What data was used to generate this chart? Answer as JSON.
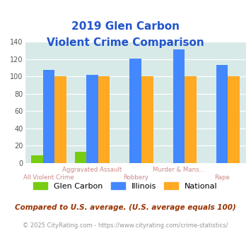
{
  "title_line1": "2019 Glen Carbon",
  "title_line2": "Violent Crime Comparison",
  "categories": [
    "All Violent Crime",
    "Aggravated Assault",
    "Robbery",
    "Murder & Mans...",
    "Rape"
  ],
  "label_top": [
    "",
    "Aggravated Assault",
    "",
    "Murder & Mans...",
    ""
  ],
  "label_bottom": [
    "All Violent Crime",
    "",
    "Robbery",
    "",
    "Rape"
  ],
  "glen_carbon": [
    9,
    13,
    0,
    0,
    0
  ],
  "illinois": [
    108,
    102,
    121,
    131,
    113
  ],
  "national": [
    100,
    100,
    100,
    100,
    100
  ],
  "glen_carbon_color": "#77cc11",
  "illinois_color": "#4488ff",
  "national_color": "#ffaa22",
  "bg_color": "#d8eae8",
  "ylim": [
    0,
    140
  ],
  "yticks": [
    0,
    20,
    40,
    60,
    80,
    100,
    120,
    140
  ],
  "title_color": "#2255cc",
  "xlabel_top_color": "#cc8888",
  "xlabel_bot_color": "#cc8888",
  "footnote1": "Compared to U.S. average. (U.S. average equals 100)",
  "footnote2": "© 2025 CityRating.com - https://www.cityrating.com/crime-statistics/",
  "footnote1_color": "#993300",
  "footnote2_color": "#999999",
  "legend_gc": "Glen Carbon",
  "legend_il": "Illinois",
  "legend_na": "National"
}
